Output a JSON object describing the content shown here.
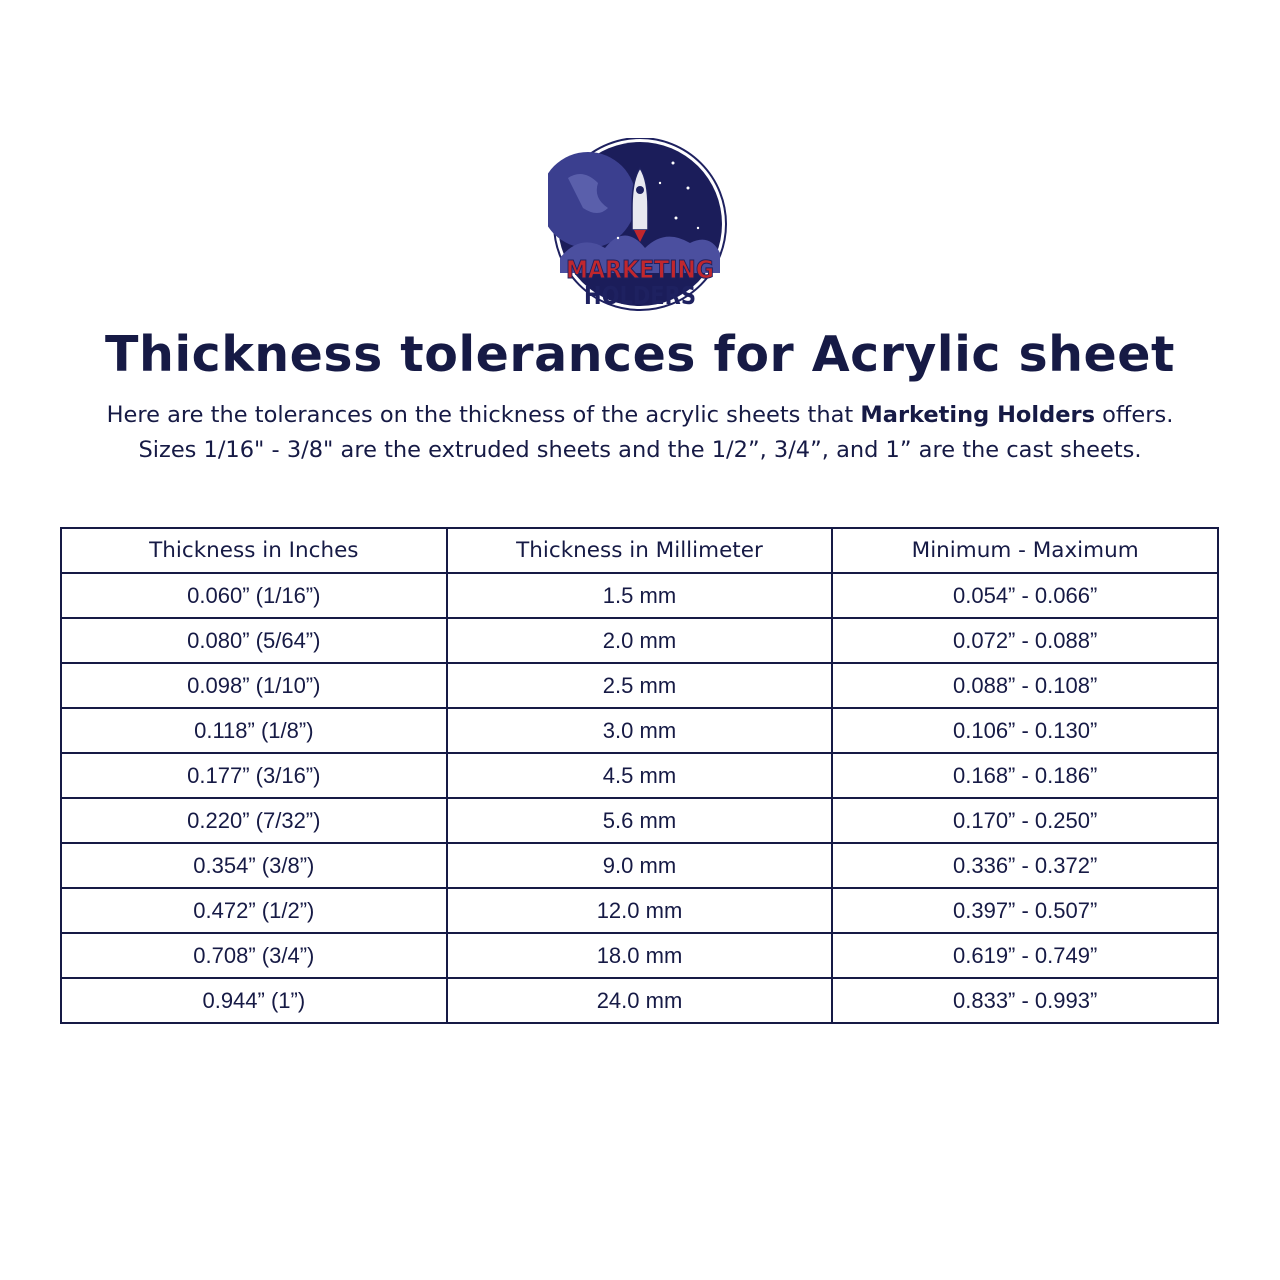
{
  "logo": {
    "line1": "MARKETING",
    "line2": "HOLDERS",
    "colors": {
      "navy": "#1e2160",
      "red": "#c1272d"
    }
  },
  "title": "Thickness tolerances for Acrylic sheet",
  "intro": {
    "line1_before": "Here are the tolerances on the thickness of the acrylic sheets that ",
    "line1_bold": "Marketing Holders",
    "line1_after": " offers.",
    "line2": "Sizes 1/16\" - 3/8\" are the extruded sheets and the 1/2”, 3/4”, and 1” are the cast sheets."
  },
  "table": {
    "headers": [
      "Thickness in Inches",
      "Thickness in Millimeter",
      "Minimum - Maximum"
    ],
    "rows": [
      [
        "0.060” (1/16”)",
        "1.5 mm",
        "0.054” - 0.066”"
      ],
      [
        "0.080” (5/64”)",
        "2.0 mm",
        "0.072” - 0.088”"
      ],
      [
        "0.098” (1/10”)",
        "2.5 mm",
        "0.088” - 0.108”"
      ],
      [
        "0.118” (1/8”)",
        "3.0 mm",
        "0.106” - 0.130”"
      ],
      [
        "0.177” (3/16”)",
        "4.5 mm",
        "0.168” - 0.186”"
      ],
      [
        "0.220” (7/32”)",
        "5.6 mm",
        "0.170” - 0.250”"
      ],
      [
        "0.354” (3/8”)",
        "9.0 mm",
        "0.336” - 0.372”"
      ],
      [
        "0.472” (1/2”)",
        "12.0 mm",
        "0.397” - 0.507”"
      ],
      [
        "0.708” (3/4”)",
        "18.0 mm",
        "0.619” - 0.749”"
      ],
      [
        "0.944” (1”)",
        "24.0 mm",
        "0.833” - 0.993”"
      ]
    ]
  }
}
